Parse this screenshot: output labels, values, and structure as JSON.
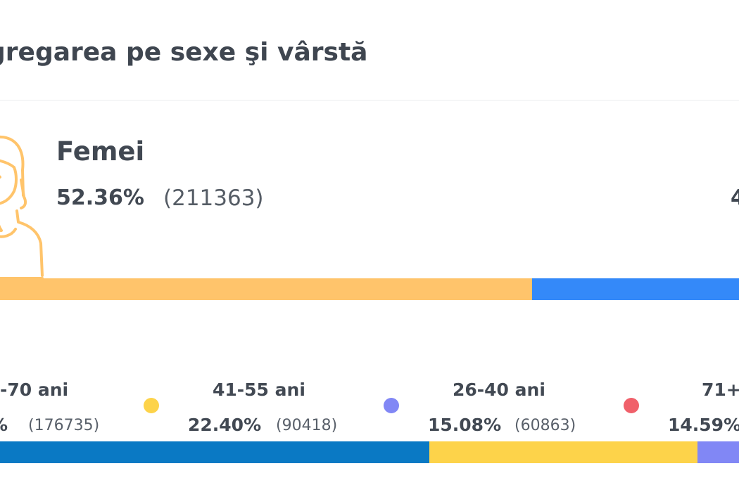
{
  "section": {
    "title": "gregarea pe sexe şi vârstă"
  },
  "gender": {
    "female": {
      "label": "Femei",
      "percent": "52.36%",
      "count": "(211363)",
      "share": 52.36,
      "color": "#ffc46b"
    },
    "male": {
      "percent_partial": "4",
      "share": 47.64,
      "color": "#3489f9"
    },
    "icon": "female-person-icon"
  },
  "ages": [
    {
      "label": "-70 ani",
      "percent": "%",
      "count": "(176735)",
      "share": 43.78,
      "color": "#0a79c4"
    },
    {
      "label": "41-55 ani",
      "percent": "22.40%",
      "count": "(90418)",
      "share": 22.4,
      "color": "#fdd34a"
    },
    {
      "label": "26-40 ani",
      "percent": "15.08%",
      "count": "(60863)",
      "share": 15.08,
      "color": "#8187f5"
    },
    {
      "label": "71+",
      "percent": "14.59%",
      "count": "",
      "share": 14.59,
      "color": "#f0606a"
    }
  ]
}
